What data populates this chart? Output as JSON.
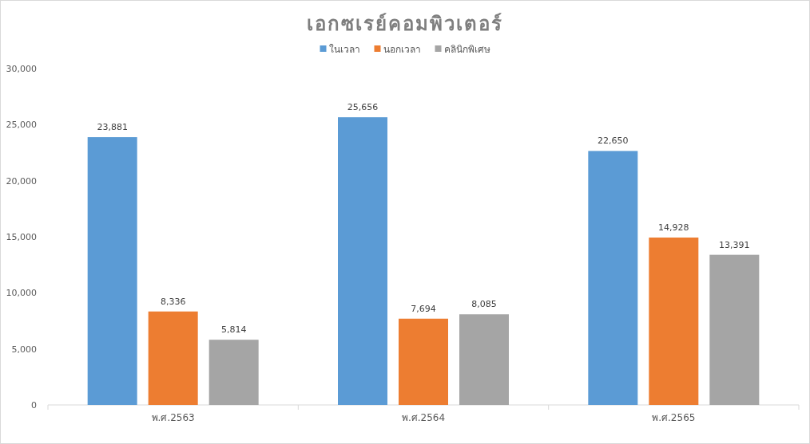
{
  "chart_data": {
    "type": "bar",
    "title": "เอกซเรย์คอมพิวเตอร์",
    "categories": [
      "พ.ศ.2563",
      "พ.ศ.2564",
      "พ.ศ.2565"
    ],
    "series": [
      {
        "name": "ในเวลา",
        "color": "#5b9bd5",
        "values": [
          23881,
          25656,
          22650
        ],
        "value_labels": [
          "23,881",
          "25,656",
          "22,650"
        ]
      },
      {
        "name": "นอกเวลา",
        "color": "#ed7d31",
        "values": [
          8336,
          7694,
          14928
        ],
        "value_labels": [
          "8,336",
          "7,694",
          "14,928"
        ]
      },
      {
        "name": "คลินิกพิเศษ",
        "color": "#a5a5a5",
        "values": [
          5814,
          8085,
          13391
        ],
        "value_labels": [
          "5,814",
          "8,085",
          "13,391"
        ]
      }
    ],
    "ylim": [
      0,
      30000
    ],
    "yticks": [
      {
        "value": 0,
        "label": "0"
      },
      {
        "value": 5000,
        "label": "5,000"
      },
      {
        "value": 10000,
        "label": "10,000"
      },
      {
        "value": 15000,
        "label": "15,000"
      },
      {
        "value": 20000,
        "label": "20,000"
      },
      {
        "value": 25000,
        "label": "25,000"
      },
      {
        "value": 30000,
        "label": "30,000"
      }
    ],
    "legend": "top",
    "grid": false
  }
}
